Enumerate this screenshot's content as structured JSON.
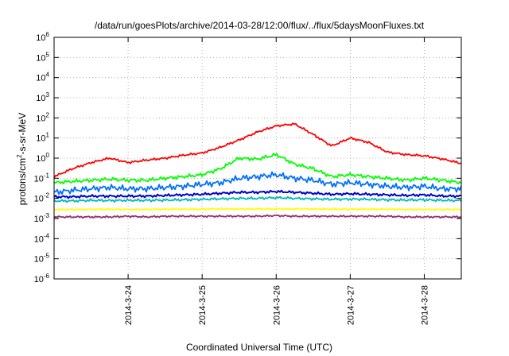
{
  "chart_data": {
    "type": "line",
    "title": "/data/run/goesPlots/archive/2014-03-28/12:00/flux/../flux/5daysMoonFluxes.txt",
    "xlabel": "Coordinated Universal Time (UTC)",
    "ylabel_parts": {
      "base": "protons/cm",
      "exp": "2",
      "rest": "-s-sr-MeV"
    },
    "x_axis": {
      "start": "2014-03-23T00:00",
      "end": "2014-03-28T12:00",
      "ticks": [
        "2014-3-24",
        "2014-3-25",
        "2014-3-26",
        "2014-3-27",
        "2014-3-28"
      ],
      "grid": true
    },
    "y_axis": {
      "scale": "log",
      "range": [
        1e-06,
        1000000.0
      ],
      "tick_exponents": [
        -6,
        -5,
        -4,
        -3,
        -2,
        -1,
        0,
        1,
        2,
        3,
        4,
        5,
        6
      ],
      "grid": true
    },
    "x_dates": [
      "2014-03-23T00:00",
      "2014-03-23T06:00",
      "2014-03-23T12:00",
      "2014-03-23T18:00",
      "2014-03-24T00:00",
      "2014-03-24T06:00",
      "2014-03-24T12:00",
      "2014-03-24T18:00",
      "2014-03-25T00:00",
      "2014-03-25T06:00",
      "2014-03-25T12:00",
      "2014-03-25T18:00",
      "2014-03-26T00:00",
      "2014-03-26T06:00",
      "2014-03-26T12:00",
      "2014-03-26T18:00",
      "2014-03-27T00:00",
      "2014-03-27T06:00",
      "2014-03-27T12:00",
      "2014-03-27T18:00",
      "2014-03-28T00:00",
      "2014-03-28T06:00",
      "2014-03-28T12:00"
    ],
    "series": [
      {
        "color": "#ff0000",
        "values": [
          0.12,
          0.3,
          0.6,
          1.0,
          0.6,
          0.8,
          1.0,
          1.4,
          1.8,
          3.5,
          8,
          20,
          40,
          50,
          15,
          4,
          10,
          6,
          2,
          1.5,
          1.3,
          0.9,
          0.55
        ]
      },
      {
        "color": "#00ff00",
        "values": [
          0.06,
          0.07,
          0.08,
          0.09,
          0.08,
          0.08,
          0.1,
          0.12,
          0.15,
          0.3,
          1.0,
          0.9,
          1.5,
          0.5,
          0.3,
          0.12,
          0.15,
          0.12,
          0.1,
          0.08,
          0.1,
          0.08,
          0.06
        ]
      },
      {
        "color": "#0070ff",
        "values": [
          0.02,
          0.025,
          0.03,
          0.035,
          0.03,
          0.03,
          0.035,
          0.04,
          0.05,
          0.06,
          0.1,
          0.12,
          0.15,
          0.1,
          0.08,
          0.05,
          0.06,
          0.05,
          0.04,
          0.035,
          0.04,
          0.03,
          0.03
        ]
      },
      {
        "color": "#0000d0",
        "values": [
          0.012,
          0.012,
          0.013,
          0.013,
          0.013,
          0.013,
          0.014,
          0.015,
          0.016,
          0.018,
          0.02,
          0.02,
          0.022,
          0.02,
          0.018,
          0.016,
          0.017,
          0.016,
          0.015,
          0.014,
          0.015,
          0.013,
          0.013
        ]
      },
      {
        "color": "#00b8b8",
        "values": [
          0.0075,
          0.0075,
          0.008,
          0.0078,
          0.008,
          0.008,
          0.0082,
          0.0085,
          0.009,
          0.0095,
          0.01,
          0.01,
          0.011,
          0.01,
          0.0095,
          0.009,
          0.0092,
          0.009,
          0.0085,
          0.0082,
          0.0085,
          0.008,
          0.0078
        ]
      },
      {
        "color": "#ffff00",
        "values": [
          0.0028,
          0.0028,
          0.0028,
          0.0029,
          0.0028,
          0.0028,
          0.0029,
          0.0029,
          0.0029,
          0.003,
          0.003,
          0.003,
          0.003,
          0.003,
          0.003,
          0.0029,
          0.0029,
          0.0029,
          0.0029,
          0.0028,
          0.0028,
          0.0028,
          0.0028
        ]
      },
      {
        "color": "#903070",
        "values": [
          0.0012,
          0.0012,
          0.0012,
          0.0012,
          0.0013,
          0.0012,
          0.0013,
          0.0013,
          0.0013,
          0.0013,
          0.0013,
          0.0013,
          0.0014,
          0.0013,
          0.0013,
          0.0013,
          0.0013,
          0.0013,
          0.0013,
          0.0012,
          0.0012,
          0.0012,
          0.0012
        ]
      }
    ]
  }
}
